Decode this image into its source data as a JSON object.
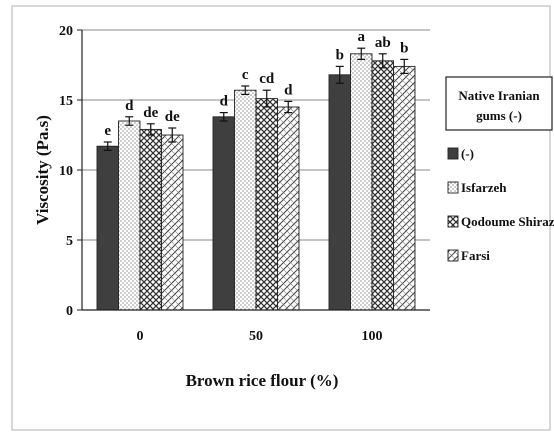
{
  "chart_data": {
    "type": "bar",
    "title": "",
    "xlabel": "Brown rice flour (%)",
    "ylabel": "Viscosity (Pa.s)",
    "ylim": [
      0,
      20
    ],
    "yticks": [
      0,
      5,
      10,
      15,
      20
    ],
    "grid": true,
    "categories": [
      "0",
      "50",
      "100"
    ],
    "legend": {
      "title_lines": [
        "Native Iranian",
        "gums (-)"
      ],
      "placement": "right"
    },
    "series": [
      {
        "name": "(-)",
        "pattern": "solid-dark",
        "values": [
          11.7,
          13.8,
          16.8
        ],
        "errors": [
          0.3,
          0.3,
          0.6
        ],
        "labels": [
          "e",
          "d",
          "b"
        ]
      },
      {
        "name": "Isfarzeh",
        "pattern": "dots",
        "values": [
          13.5,
          15.7,
          18.3
        ],
        "errors": [
          0.3,
          0.3,
          0.4
        ],
        "labels": [
          "d",
          "c",
          "a"
        ]
      },
      {
        "name": "Qodoume Shirazi",
        "pattern": "checker",
        "values": [
          12.9,
          15.1,
          17.8
        ],
        "errors": [
          0.4,
          0.6,
          0.5
        ],
        "labels": [
          "de",
          "cd",
          "ab"
        ]
      },
      {
        "name": "Farsi",
        "pattern": "diagonal",
        "values": [
          12.5,
          14.5,
          17.4
        ],
        "errors": [
          0.5,
          0.4,
          0.5
        ],
        "labels": [
          "de",
          "d",
          "b"
        ]
      }
    ],
    "colors": {
      "solid": "#3f3f3f",
      "outline": "#222222",
      "grid": "#8a8a8a",
      "frame": "#b0b0b0"
    }
  }
}
